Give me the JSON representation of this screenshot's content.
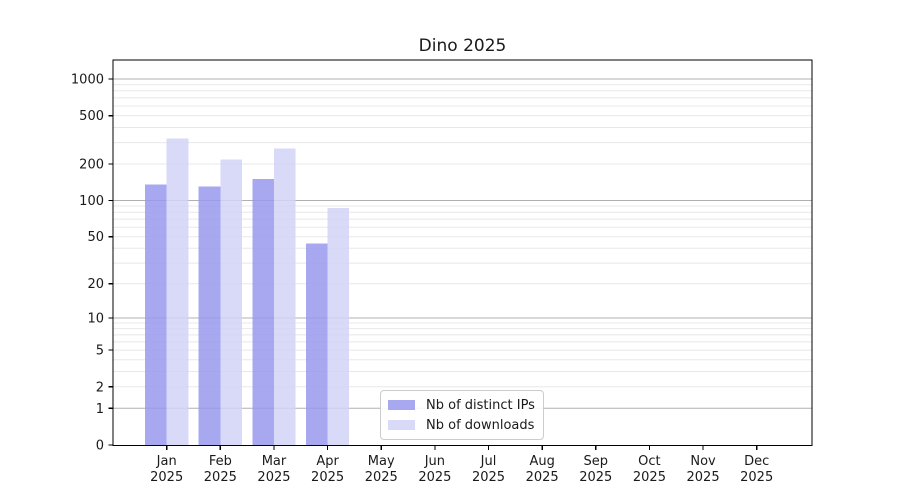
{
  "title": "Dino 2025",
  "chart_data": {
    "type": "bar",
    "title": "Dino 2025",
    "categories": [
      "Jan",
      "Feb",
      "Mar",
      "Apr",
      "May",
      "Jun",
      "Jul",
      "Aug",
      "Sep",
      "Oct",
      "Nov",
      "Dec"
    ],
    "category_year": "2025",
    "series": [
      {
        "name": "Nb of distinct IPs",
        "color": "#9999ee",
        "values": [
          135,
          131,
          150,
          44,
          0,
          0,
          0,
          0,
          0,
          0,
          0,
          0
        ]
      },
      {
        "name": "Nb of downloads",
        "color": "#d2d2f7",
        "values": [
          324,
          218,
          269,
          87,
          0,
          0,
          0,
          0,
          0,
          0,
          0,
          0
        ]
      }
    ],
    "yscale": "log1p",
    "y_ticks": [
      0,
      1,
      2,
      5,
      10,
      20,
      50,
      100,
      200,
      500,
      1000
    ],
    "ylim": [
      0,
      1400
    ],
    "grid": true,
    "legend_position": "inside lower center"
  },
  "colors": {
    "background": "#ffffff",
    "grid_major": "#b0b0b0",
    "grid_minor": "#e8e8e8",
    "axis": "#000000",
    "text": "#1a1a1a",
    "legend_border": "#cccccc"
  }
}
